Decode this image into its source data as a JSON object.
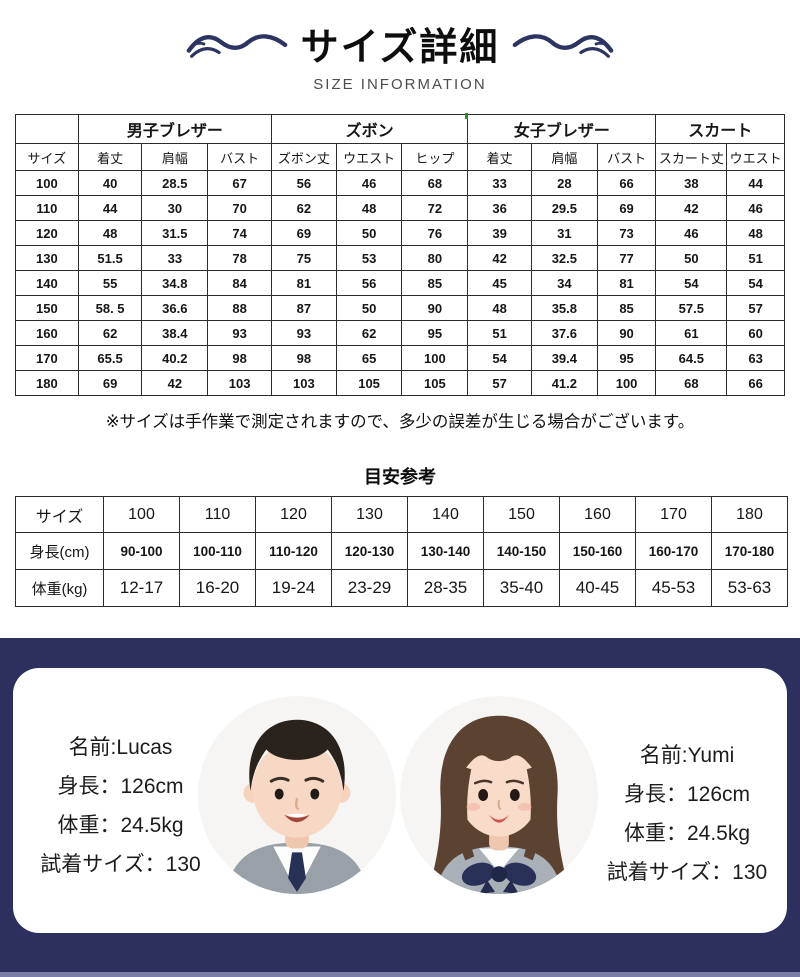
{
  "header": {
    "title": "サイズ詳細",
    "subtitle": "SIZE INFORMATION"
  },
  "size_table": {
    "size_label": "サイズ",
    "group_headers": [
      {
        "label": "男子ブレザー",
        "span": 3
      },
      {
        "label": "ズボン",
        "span": 3
      },
      {
        "label": "女子ブレザー",
        "span": 3
      },
      {
        "label": "スカート",
        "span": 2
      }
    ],
    "column_headers": [
      "着丈",
      "肩幅",
      "バスト",
      "ズボン丈",
      "ウエスト",
      "ヒップ",
      "着丈",
      "肩幅",
      "バスト",
      "スカート丈",
      "ウエスト"
    ],
    "rows": [
      {
        "size": "100",
        "values": [
          "40",
          "28.5",
          "67",
          "56",
          "46",
          "68",
          "33",
          "28",
          "66",
          "38",
          "44"
        ]
      },
      {
        "size": "110",
        "values": [
          "44",
          "30",
          "70",
          "62",
          "48",
          "72",
          "36",
          "29.5",
          "69",
          "42",
          "46"
        ]
      },
      {
        "size": "120",
        "values": [
          "48",
          "31.5",
          "74",
          "69",
          "50",
          "76",
          "39",
          "31",
          "73",
          "46",
          "48"
        ]
      },
      {
        "size": "130",
        "values": [
          "51.5",
          "33",
          "78",
          "75",
          "53",
          "80",
          "42",
          "32.5",
          "77",
          "50",
          "51"
        ]
      },
      {
        "size": "140",
        "values": [
          "55",
          "34.8",
          "84",
          "81",
          "56",
          "85",
          "45",
          "34",
          "81",
          "54",
          "54"
        ]
      },
      {
        "size": "150",
        "values": [
          "58. 5",
          "36.6",
          "88",
          "87",
          "50",
          "90",
          "48",
          "35.8",
          "85",
          "57.5",
          "57"
        ]
      },
      {
        "size": "160",
        "values": [
          "62",
          "38.4",
          "93",
          "93",
          "62",
          "95",
          "51",
          "37.6",
          "90",
          "61",
          "60"
        ]
      },
      {
        "size": "170",
        "values": [
          "65.5",
          "40.2",
          "98",
          "98",
          "65",
          "100",
          "54",
          "39.4",
          "95",
          "64.5",
          "63"
        ]
      },
      {
        "size": "180",
        "values": [
          "69",
          "42",
          "103",
          "103",
          "105",
          "105",
          "57",
          "41.2",
          "100",
          "68",
          "66"
        ]
      }
    ]
  },
  "note": "※サイズは手作業で測定されますので、多少の誤差が生じる場合がございます。",
  "reference_table": {
    "title": "目安参考",
    "size_label": "サイズ",
    "height_label": "身長(cm)",
    "weight_label": "体重(kg)",
    "sizes": [
      "100",
      "110",
      "120",
      "130",
      "140",
      "150",
      "160",
      "170",
      "180"
    ],
    "heights": [
      "90-100",
      "100-110",
      "110-120",
      "120-130",
      "130-140",
      "140-150",
      "150-160",
      "160-170",
      "170-180"
    ],
    "weights": [
      "12-17",
      "16-20",
      "19-24",
      "23-29",
      "28-35",
      "35-40",
      "40-45",
      "45-53",
      "53-63"
    ]
  },
  "models": {
    "left": {
      "name_line": "名前:Lucas",
      "height_line": "身長：126cm",
      "weight_line": "体重：24.5kg",
      "size_line": "試着サイズ：130"
    },
    "right": {
      "name_line": "名前:Yumi",
      "height_line": "身長：126cm",
      "weight_line": "体重：24.5kg",
      "size_line": "試着サイズ：130"
    }
  },
  "colors": {
    "navy_band": "#2d2f5e",
    "flourish_navy": "#2c3462",
    "bottom_strip": "#7a7da8",
    "table_border": "#2b2b2b"
  }
}
